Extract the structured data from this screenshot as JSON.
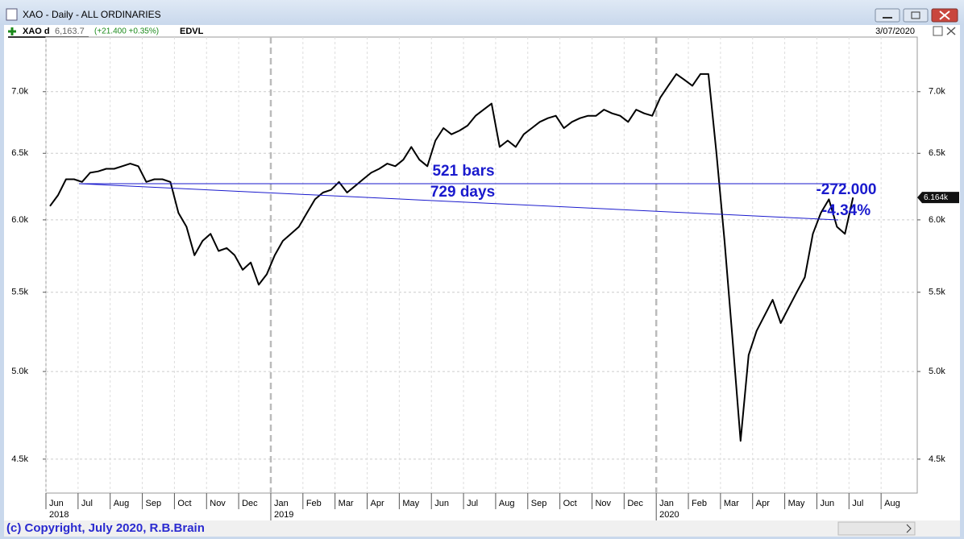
{
  "window_title": "XAO - Daily - ALL ORDINARIES",
  "info_bar": {
    "symbol": "XAO d",
    "price": "6,163.7",
    "change": "(+21.400 +0.35%)",
    "indicator": "EDVL",
    "date": "3/07/2020"
  },
  "footer": "(c) Copyright, July 2020, R.B.Brain",
  "chart_data": {
    "type": "line",
    "log_scale": true,
    "grid": true,
    "color": "#000000",
    "xlim": [
      "2018-06",
      "2020-09"
    ],
    "ylim": [
      4320,
      7475
    ],
    "yticks": [
      {
        "value": 4500,
        "label": "4.5k"
      },
      {
        "value": 5000,
        "label": "5.0k"
      },
      {
        "value": 5500,
        "label": "5.5k"
      },
      {
        "value": 6000,
        "label": "6.0k"
      },
      {
        "value": 6500,
        "label": "6.5k"
      },
      {
        "value": 7000,
        "label": "7.0k"
      }
    ],
    "xticks": [
      {
        "value": "2018-06",
        "label": "Jun"
      },
      {
        "value": "2018-07",
        "label": "Jul"
      },
      {
        "value": "2018-08",
        "label": "Aug"
      },
      {
        "value": "2018-09",
        "label": "Sep"
      },
      {
        "value": "2018-10",
        "label": "Oct"
      },
      {
        "value": "2018-11",
        "label": "Nov"
      },
      {
        "value": "2018-12",
        "label": "Dec"
      },
      {
        "value": "2019-01",
        "label": "Jan"
      },
      {
        "value": "2019-02",
        "label": "Feb"
      },
      {
        "value": "2019-03",
        "label": "Mar"
      },
      {
        "value": "2019-04",
        "label": "Apr"
      },
      {
        "value": "2019-05",
        "label": "May"
      },
      {
        "value": "2019-06",
        "label": "Jun"
      },
      {
        "value": "2019-07",
        "label": "Jul"
      },
      {
        "value": "2019-08",
        "label": "Aug"
      },
      {
        "value": "2019-09",
        "label": "Sep"
      },
      {
        "value": "2019-10",
        "label": "Oct"
      },
      {
        "value": "2019-11",
        "label": "Nov"
      },
      {
        "value": "2019-12",
        "label": "Dec"
      },
      {
        "value": "2020-01",
        "label": "Jan"
      },
      {
        "value": "2020-02",
        "label": "Feb"
      },
      {
        "value": "2020-03",
        "label": "Mar"
      },
      {
        "value": "2020-04",
        "label": "Apr"
      },
      {
        "value": "2020-05",
        "label": "May"
      },
      {
        "value": "2020-06",
        "label": "Jun"
      },
      {
        "value": "2020-07",
        "label": "Jul"
      },
      {
        "value": "2020-08",
        "label": "Aug"
      }
    ],
    "year_labels": [
      {
        "value": "2018-06",
        "label": "2018"
      },
      {
        "value": "2019-01",
        "label": "2019"
      },
      {
        "value": "2020-01",
        "label": "2020"
      }
    ],
    "months": [
      {
        "x": "2018-06",
        "values": [
          6100,
          6180,
          6300,
          6300
        ]
      },
      {
        "x": "2018-07",
        "values": [
          6280,
          6350,
          6360,
          6380
        ]
      },
      {
        "x": "2018-08",
        "values": [
          6380,
          6400,
          6420,
          6400
        ]
      },
      {
        "x": "2018-09",
        "values": [
          6280,
          6300,
          6300,
          6280
        ]
      },
      {
        "x": "2018-10",
        "values": [
          6050,
          5950,
          5750,
          5850
        ]
      },
      {
        "x": "2018-11",
        "values": [
          5900,
          5780,
          5800,
          5750
        ]
      },
      {
        "x": "2018-12",
        "values": [
          5650,
          5700,
          5550,
          5620
        ]
      },
      {
        "x": "2019-01",
        "values": [
          5750,
          5850,
          5900,
          5950
        ]
      },
      {
        "x": "2019-02",
        "values": [
          6050,
          6150,
          6200,
          6220
        ]
      },
      {
        "x": "2019-03",
        "values": [
          6280,
          6200,
          6250,
          6300
        ]
      },
      {
        "x": "2019-04",
        "values": [
          6350,
          6380,
          6420,
          6400
        ]
      },
      {
        "x": "2019-05",
        "values": [
          6450,
          6550,
          6450,
          6400
        ]
      },
      {
        "x": "2019-06",
        "values": [
          6600,
          6700,
          6650,
          6680
        ]
      },
      {
        "x": "2019-07",
        "values": [
          6720,
          6800,
          6850,
          6900
        ]
      },
      {
        "x": "2019-08",
        "values": [
          6550,
          6600,
          6550,
          6650
        ]
      },
      {
        "x": "2019-09",
        "values": [
          6700,
          6750,
          6780,
          6800
        ]
      },
      {
        "x": "2019-10",
        "values": [
          6700,
          6750,
          6780,
          6800
        ]
      },
      {
        "x": "2019-11",
        "values": [
          6800,
          6850,
          6820,
          6800
        ]
      },
      {
        "x": "2019-12",
        "values": [
          6750,
          6850,
          6820,
          6800
        ]
      },
      {
        "x": "2020-01",
        "values": [
          6950,
          7050,
          7150,
          7100
        ]
      },
      {
        "x": "2020-02",
        "values": [
          7050,
          7150,
          7150,
          6500
        ]
      },
      {
        "x": "2020-03",
        "values": [
          5850,
          5200,
          4600,
          5100
        ]
      },
      {
        "x": "2020-04",
        "values": [
          5250,
          5350,
          5450,
          5300
        ]
      },
      {
        "x": "2020-05",
        "values": [
          5400,
          5500,
          5600,
          5900
        ]
      },
      {
        "x": "2020-06",
        "values": [
          6050,
          6150,
          5950,
          5900
        ]
      },
      {
        "x": "2020-07",
        "values": [
          6163.7
        ]
      }
    ],
    "last_value_label": "6.164k",
    "annotations": {
      "bars": "521 bars",
      "days": "729 days",
      "change": "-272.000",
      "change_pct": "-4.34%"
    }
  }
}
